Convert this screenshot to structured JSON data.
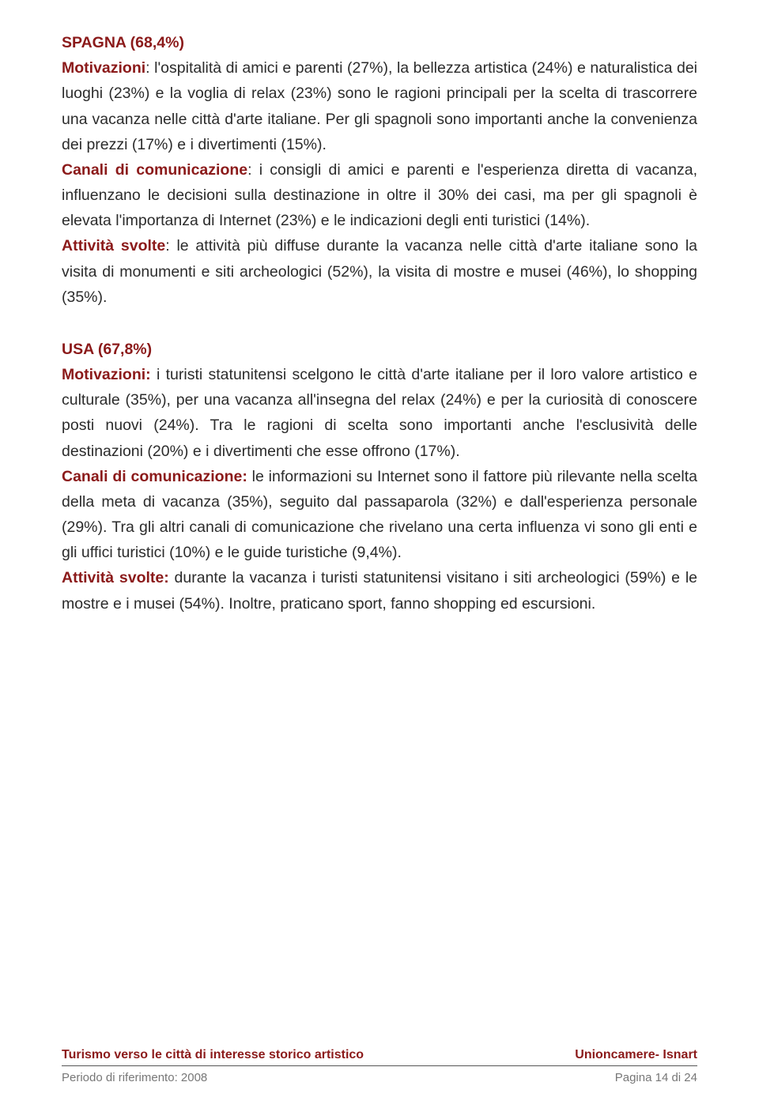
{
  "colors": {
    "accent": "#8b1a1a",
    "body_text": "#2b2b2b",
    "footer_muted": "#777777",
    "background": "#ffffff",
    "rule": "#555555"
  },
  "typography": {
    "body_fontsize_pt": 14,
    "heading_fontsize_pt": 14,
    "footer_fontsize_pt": 12,
    "line_height": 1.65,
    "font_family": "Arial"
  },
  "sections": [
    {
      "heading": "SPAGNA (68,4%)",
      "blocks": [
        {
          "label": "Motivazioni",
          "text": ": l'ospitalità di amici e parenti (27%), la bellezza artistica (24%) e naturalistica dei luoghi (23%) e la voglia di relax (23%) sono le ragioni principali per la scelta di trascorrere una vacanza nelle città d'arte italiane. Per gli spagnoli sono importanti anche la convenienza dei prezzi (17%) e i divertimenti (15%)."
        },
        {
          "label": "Canali di comunicazione",
          "text": ": i consigli di amici e parenti e l'esperienza diretta di vacanza, influenzano le decisioni sulla destinazione in oltre il 30% dei casi, ma per gli spagnoli è elevata l'importanza di Internet (23%) e le indicazioni degli enti turistici (14%)."
        },
        {
          "label": "Attività svolte",
          "text": ": le attività più diffuse durante la vacanza nelle città d'arte italiane sono la visita di monumenti e siti archeologici (52%), la visita di mostre e musei (46%), lo shopping (35%)."
        }
      ]
    },
    {
      "heading": "USA (67,8%)",
      "blocks": [
        {
          "label": "Motivazioni:",
          "text": " i turisti statunitensi scelgono le città d'arte italiane per il loro valore artistico e culturale (35%), per una vacanza all'insegna del relax (24%) e per la curiosità di conoscere posti nuovi (24%). Tra le ragioni di scelta sono importanti anche l'esclusività delle destinazioni (20%) e i divertimenti che esse offrono (17%)."
        },
        {
          "label": "Canali di comunicazione:",
          "text": " le informazioni su Internet sono il fattore più rilevante nella scelta della meta di vacanza (35%), seguito dal passaparola (32%) e dall'esperienza personale (29%). Tra gli altri canali di comunicazione che rivelano una certa influenza vi sono gli enti e gli uffici turistici (10%) e le guide turistiche (9,4%)."
        },
        {
          "label": "Attività svolte:",
          "text": " durante la vacanza i turisti statunitensi visitano i siti archeologici (59%) e le mostre e i musei (54%). Inoltre, praticano sport, fanno shopping ed escursioni."
        }
      ]
    }
  ],
  "footer": {
    "title_left": "Turismo verso le città di interesse storico artistico",
    "title_right": "Unioncamere- Isnart",
    "sub_left": "Periodo di riferimento: 2008",
    "sub_right": "Pagina 14 di 24"
  }
}
